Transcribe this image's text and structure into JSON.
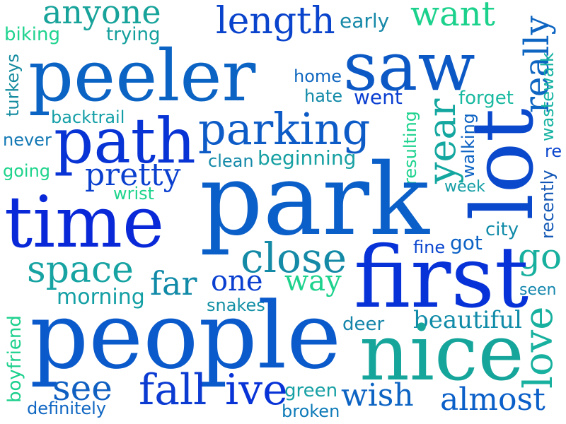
{
  "words": [
    {
      "text": "anyone",
      "color": "#17a39a"
    },
    {
      "text": "length",
      "color": "#0a44cc"
    },
    {
      "text": "early",
      "color": "#1789a8"
    },
    {
      "text": "want",
      "color": "#1bd18c"
    },
    {
      "text": "biking",
      "color": "#1fd38f"
    },
    {
      "text": "trying",
      "color": "#139f9c"
    },
    {
      "text": "peeler",
      "color": "#0b63c4"
    },
    {
      "text": "saw",
      "color": "#0c59c6"
    },
    {
      "text": "really",
      "color": "#0f66c2"
    },
    {
      "text": "turkeys",
      "color": "#148b9f"
    },
    {
      "text": "home",
      "color": "#1067c0"
    },
    {
      "text": "hate",
      "color": "#138aa8"
    },
    {
      "text": "went",
      "color": "#0b3fd1"
    },
    {
      "text": "forget",
      "color": "#18b9a0"
    },
    {
      "text": "backtrail",
      "color": "#139fa6"
    },
    {
      "text": "wastewalk",
      "color": "#17b3a2"
    },
    {
      "text": "path",
      "color": "#0833d5"
    },
    {
      "text": "parking",
      "color": "#0d5bc7"
    },
    {
      "text": "never",
      "color": "#1278b4"
    },
    {
      "text": "lot",
      "color": "#0a48cc"
    },
    {
      "text": "year",
      "color": "#13a79f"
    },
    {
      "text": "re",
      "color": "#0b46cf"
    },
    {
      "text": "clean",
      "color": "#148aa8"
    },
    {
      "text": "beginning",
      "color": "#17a0a2"
    },
    {
      "text": "resulting",
      "color": "#1cd28d"
    },
    {
      "text": "walking",
      "color": "#0e63c3"
    },
    {
      "text": "pretty",
      "color": "#0b40cf"
    },
    {
      "text": "going",
      "color": "#1dd38b"
    },
    {
      "text": "wrist",
      "color": "#1ed48c"
    },
    {
      "text": "week",
      "color": "#159ea4"
    },
    {
      "text": "park",
      "color": "#0b5fc8"
    },
    {
      "text": "time",
      "color": "#0929d9"
    },
    {
      "text": "city",
      "color": "#118ba8"
    },
    {
      "text": "recently",
      "color": "#1357b6"
    },
    {
      "text": "fine",
      "color": "#0b46cf"
    },
    {
      "text": "got",
      "color": "#0d63c5"
    },
    {
      "text": "close",
      "color": "#148aa6"
    },
    {
      "text": "go",
      "color": "#17b09e"
    },
    {
      "text": "space",
      "color": "#18a3a3"
    },
    {
      "text": "first",
      "color": "#0732d8"
    },
    {
      "text": "far",
      "color": "#118aa8"
    },
    {
      "text": "one",
      "color": "#0a3fd0"
    },
    {
      "text": "way",
      "color": "#1dd28c"
    },
    {
      "text": "morning",
      "color": "#139fa4"
    },
    {
      "text": "seen",
      "color": "#1386ad"
    },
    {
      "text": "snakes",
      "color": "#1390a5"
    },
    {
      "text": "boyfriend",
      "color": "#1cd08d"
    },
    {
      "text": "people",
      "color": "#0a5acb"
    },
    {
      "text": "deer",
      "color": "#1484a9"
    },
    {
      "text": "beautiful",
      "color": "#118ba8"
    },
    {
      "text": "nice",
      "color": "#16a59b"
    },
    {
      "text": "love",
      "color": "#18b09e"
    },
    {
      "text": "see",
      "color": "#1060c2"
    },
    {
      "text": "fall",
      "color": "#0c3bd2"
    },
    {
      "text": "ive",
      "color": "#0833d7"
    },
    {
      "text": "green",
      "color": "#16a0a4"
    },
    {
      "text": "wish",
      "color": "#0d64c3"
    },
    {
      "text": "almost",
      "color": "#0b5fc8"
    },
    {
      "text": "definitely",
      "color": "#0f66c2"
    },
    {
      "text": "broken",
      "color": "#0e7bb8"
    }
  ]
}
